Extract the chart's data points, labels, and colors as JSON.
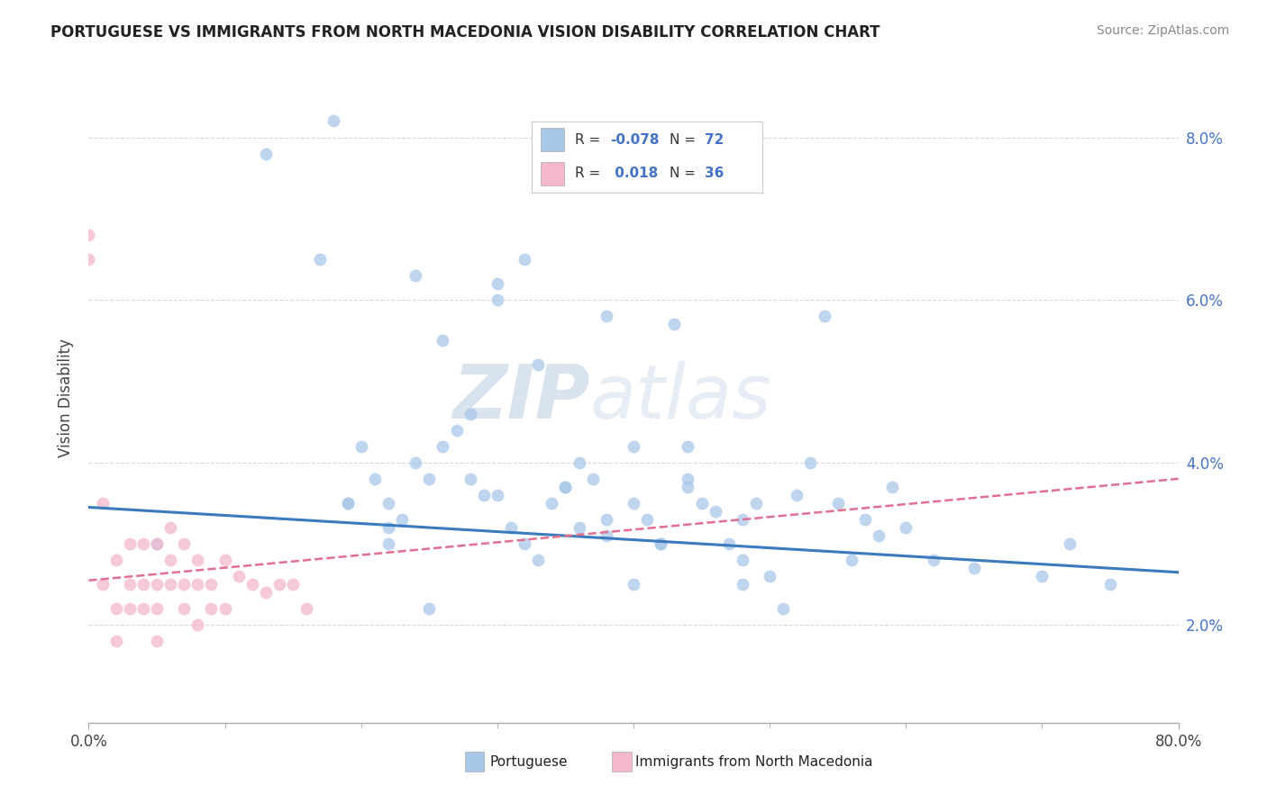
{
  "title": "PORTUGUESE VS IMMIGRANTS FROM NORTH MACEDONIA VISION DISABILITY CORRELATION CHART",
  "source": "Source: ZipAtlas.com",
  "ylabel": "Vision Disability",
  "ytick_vals": [
    0.02,
    0.04,
    0.06,
    0.08
  ],
  "xlim": [
    0.0,
    0.8
  ],
  "ylim": [
    0.008,
    0.088
  ],
  "legend_r1": "-0.078",
  "legend_n1": "72",
  "legend_r2": "0.018",
  "legend_n2": "36",
  "blue_color": "#a8c8e8",
  "pink_color": "#f4b8cc",
  "blue_line_color": "#3a7abf",
  "pink_line_color": "#e07090",
  "watermark_zip": "ZIP",
  "watermark_atlas": "atlas",
  "blue_scatter_x": [
    0.05,
    0.13,
    0.17,
    0.18,
    0.19,
    0.2,
    0.21,
    0.22,
    0.22,
    0.23,
    0.24,
    0.25,
    0.26,
    0.27,
    0.28,
    0.29,
    0.3,
    0.3,
    0.31,
    0.32,
    0.33,
    0.34,
    0.35,
    0.36,
    0.37,
    0.38,
    0.38,
    0.4,
    0.4,
    0.41,
    0.42,
    0.43,
    0.44,
    0.44,
    0.45,
    0.46,
    0.47,
    0.48,
    0.48,
    0.49,
    0.5,
    0.52,
    0.53,
    0.54,
    0.55,
    0.56,
    0.57,
    0.58,
    0.59,
    0.6,
    0.62,
    0.65,
    0.7,
    0.72,
    0.75,
    0.24,
    0.26,
    0.3,
    0.32,
    0.35,
    0.38,
    0.4,
    0.42,
    0.28,
    0.33,
    0.36,
    0.19,
    0.22,
    0.25,
    0.44,
    0.48,
    0.51
  ],
  "blue_scatter_y": [
    0.03,
    0.078,
    0.065,
    0.082,
    0.035,
    0.042,
    0.038,
    0.035,
    0.032,
    0.033,
    0.04,
    0.038,
    0.042,
    0.044,
    0.038,
    0.036,
    0.036,
    0.062,
    0.032,
    0.03,
    0.028,
    0.035,
    0.037,
    0.032,
    0.038,
    0.058,
    0.033,
    0.035,
    0.042,
    0.033,
    0.03,
    0.057,
    0.037,
    0.042,
    0.035,
    0.034,
    0.03,
    0.028,
    0.033,
    0.035,
    0.026,
    0.036,
    0.04,
    0.058,
    0.035,
    0.028,
    0.033,
    0.031,
    0.037,
    0.032,
    0.028,
    0.027,
    0.026,
    0.03,
    0.025,
    0.063,
    0.055,
    0.06,
    0.065,
    0.037,
    0.031,
    0.025,
    0.03,
    0.046,
    0.052,
    0.04,
    0.035,
    0.03,
    0.022,
    0.038,
    0.025,
    0.022
  ],
  "pink_scatter_x": [
    0.0,
    0.0,
    0.01,
    0.01,
    0.02,
    0.02,
    0.02,
    0.03,
    0.03,
    0.03,
    0.04,
    0.04,
    0.04,
    0.05,
    0.05,
    0.05,
    0.05,
    0.06,
    0.06,
    0.06,
    0.07,
    0.07,
    0.07,
    0.08,
    0.08,
    0.08,
    0.09,
    0.09,
    0.1,
    0.1,
    0.11,
    0.12,
    0.13,
    0.14,
    0.15,
    0.16
  ],
  "pink_scatter_y": [
    0.065,
    0.068,
    0.025,
    0.035,
    0.028,
    0.022,
    0.018,
    0.03,
    0.025,
    0.022,
    0.03,
    0.025,
    0.022,
    0.03,
    0.025,
    0.022,
    0.018,
    0.032,
    0.028,
    0.025,
    0.03,
    0.025,
    0.022,
    0.028,
    0.025,
    0.02,
    0.025,
    0.022,
    0.028,
    0.022,
    0.026,
    0.025,
    0.024,
    0.025,
    0.025,
    0.022
  ],
  "blue_trend_x": [
    0.0,
    0.8
  ],
  "blue_trend_y": [
    0.0345,
    0.0265
  ],
  "pink_trend_x": [
    0.0,
    0.8
  ],
  "pink_trend_y": [
    0.0255,
    0.038
  ],
  "background_color": "#ffffff",
  "grid_color": "#d8d8d8",
  "title_color": "#222222",
  "axis_color": "#444444",
  "xtick_labels": [
    "0.0%",
    "80.0%"
  ],
  "xtick_positions": [
    0.0,
    0.8
  ],
  "xtick_minor": [
    0.1,
    0.2,
    0.3,
    0.4,
    0.5,
    0.6,
    0.7
  ],
  "legend_blue_label": "R = -0.078   N = 72",
  "legend_pink_label": "R =  0.018   N = 36",
  "bottom_label1": "Portuguese",
  "bottom_label2": "Immigrants from North Macedonia"
}
